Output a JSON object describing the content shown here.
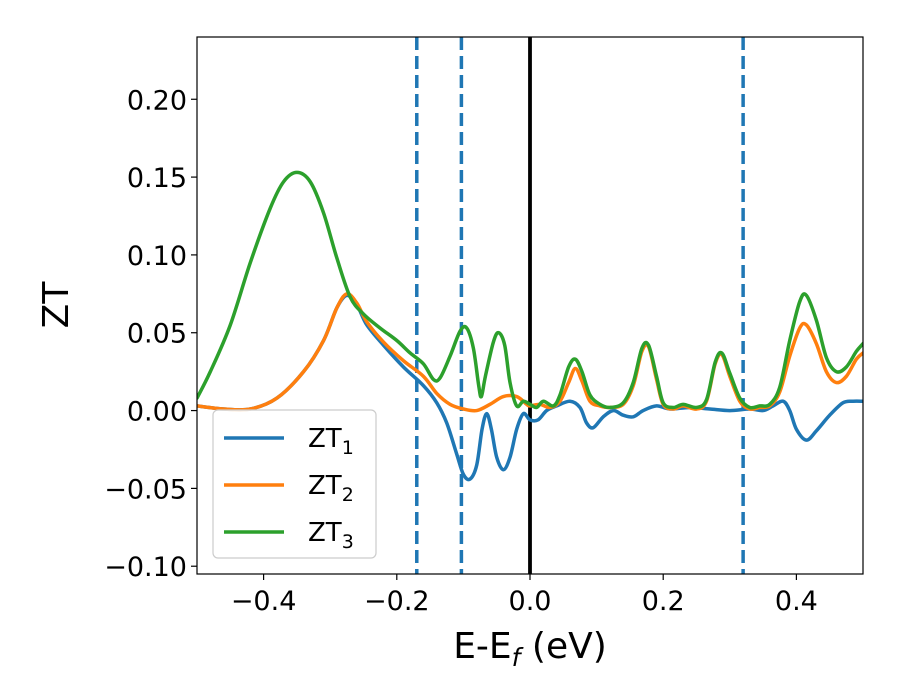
{
  "chart_data": {
    "type": "line",
    "title": "",
    "xlabel_base": "E-E",
    "xlabel_sub": "f",
    "xlabel_unit": " (eV)",
    "ylabel": "ZT",
    "xlim": [
      -0.5,
      0.5
    ],
    "ylim": [
      -0.105,
      0.24
    ],
    "x_ticks": [
      -0.4,
      -0.2,
      0.0,
      0.2,
      0.4
    ],
    "x_tick_labels": [
      "−0.4",
      "−0.2",
      "0.0",
      "0.2",
      "0.4"
    ],
    "y_ticks": [
      -0.1,
      -0.05,
      0.0,
      0.05,
      0.1,
      0.15,
      0.2
    ],
    "y_tick_labels": [
      "−0.10",
      "−0.05",
      "0.00",
      "0.05",
      "0.10",
      "0.15",
      "0.20"
    ],
    "grid": false,
    "legend_position": "lower-left",
    "vlines": [
      {
        "x": 0.0,
        "style": "solid",
        "color": "#000000"
      },
      {
        "x": -0.17,
        "style": "dashed",
        "color": "#1f77b4"
      },
      {
        "x": -0.103,
        "style": "dashed",
        "color": "#1f77b4"
      },
      {
        "x": 0.32,
        "style": "dashed",
        "color": "#1f77b4"
      }
    ],
    "series": [
      {
        "name": "ZT",
        "sub": "1",
        "color": "#1f77b4",
        "points": [
          [
            -0.5,
            0.003
          ],
          [
            -0.46,
            0.001
          ],
          [
            -0.42,
            0.001
          ],
          [
            -0.38,
            0.008
          ],
          [
            -0.34,
            0.025
          ],
          [
            -0.31,
            0.045
          ],
          [
            -0.29,
            0.066
          ],
          [
            -0.275,
            0.074
          ],
          [
            -0.26,
            0.068
          ],
          [
            -0.245,
            0.055
          ],
          [
            -0.22,
            0.042
          ],
          [
            -0.19,
            0.028
          ],
          [
            -0.16,
            0.016
          ],
          [
            -0.14,
            0.005
          ],
          [
            -0.125,
            -0.008
          ],
          [
            -0.11,
            -0.028
          ],
          [
            -0.1,
            -0.041
          ],
          [
            -0.09,
            -0.044
          ],
          [
            -0.08,
            -0.035
          ],
          [
            -0.072,
            -0.012
          ],
          [
            -0.065,
            -0.002
          ],
          [
            -0.058,
            -0.012
          ],
          [
            -0.05,
            -0.03
          ],
          [
            -0.04,
            -0.038
          ],
          [
            -0.03,
            -0.03
          ],
          [
            -0.02,
            -0.012
          ],
          [
            -0.01,
            -0.002
          ],
          [
            0.0,
            -0.006
          ],
          [
            0.012,
            -0.006
          ],
          [
            0.025,
            0.0
          ],
          [
            0.04,
            0.003
          ],
          [
            0.06,
            0.006
          ],
          [
            0.075,
            0.002
          ],
          [
            0.085,
            -0.008
          ],
          [
            0.095,
            -0.011
          ],
          [
            0.11,
            -0.004
          ],
          [
            0.125,
            0.0
          ],
          [
            0.14,
            -0.003
          ],
          [
            0.155,
            -0.004
          ],
          [
            0.17,
            0.0
          ],
          [
            0.19,
            0.003
          ],
          [
            0.21,
            0.001
          ],
          [
            0.24,
            0.002
          ],
          [
            0.27,
            0.001
          ],
          [
            0.3,
            0.0
          ],
          [
            0.33,
            0.001
          ],
          [
            0.35,
            0.0
          ],
          [
            0.365,
            0.003
          ],
          [
            0.38,
            0.006
          ],
          [
            0.39,
            0.0
          ],
          [
            0.4,
            -0.012
          ],
          [
            0.415,
            -0.019
          ],
          [
            0.43,
            -0.013
          ],
          [
            0.45,
            -0.003
          ],
          [
            0.47,
            0.005
          ],
          [
            0.485,
            0.006
          ],
          [
            0.5,
            0.006
          ]
        ]
      },
      {
        "name": "ZT",
        "sub": "2",
        "color": "#ff7f0e",
        "points": [
          [
            -0.5,
            0.003
          ],
          [
            -0.46,
            0.001
          ],
          [
            -0.42,
            0.001
          ],
          [
            -0.38,
            0.008
          ],
          [
            -0.34,
            0.025
          ],
          [
            -0.31,
            0.045
          ],
          [
            -0.29,
            0.066
          ],
          [
            -0.275,
            0.075
          ],
          [
            -0.26,
            0.069
          ],
          [
            -0.245,
            0.057
          ],
          [
            -0.22,
            0.044
          ],
          [
            -0.19,
            0.032
          ],
          [
            -0.16,
            0.022
          ],
          [
            -0.14,
            0.011
          ],
          [
            -0.12,
            0.004
          ],
          [
            -0.1,
            0.001
          ],
          [
            -0.08,
            0.0
          ],
          [
            -0.06,
            0.004
          ],
          [
            -0.04,
            0.009
          ],
          [
            -0.02,
            0.009
          ],
          [
            -0.005,
            0.004
          ],
          [
            0.0,
            0.003
          ],
          [
            0.015,
            0.004
          ],
          [
            0.03,
            0.002
          ],
          [
            0.045,
            0.006
          ],
          [
            0.058,
            0.018
          ],
          [
            0.068,
            0.027
          ],
          [
            0.078,
            0.019
          ],
          [
            0.09,
            0.006
          ],
          [
            0.105,
            0.003
          ],
          [
            0.12,
            0.002
          ],
          [
            0.14,
            0.004
          ],
          [
            0.155,
            0.016
          ],
          [
            0.168,
            0.038
          ],
          [
            0.178,
            0.041
          ],
          [
            0.19,
            0.02
          ],
          [
            0.2,
            0.004
          ],
          [
            0.215,
            0.001
          ],
          [
            0.23,
            0.003
          ],
          [
            0.25,
            0.001
          ],
          [
            0.265,
            0.006
          ],
          [
            0.278,
            0.03
          ],
          [
            0.288,
            0.036
          ],
          [
            0.3,
            0.022
          ],
          [
            0.315,
            0.006
          ],
          [
            0.33,
            0.001
          ],
          [
            0.345,
            0.002
          ],
          [
            0.36,
            0.003
          ],
          [
            0.375,
            0.012
          ],
          [
            0.39,
            0.035
          ],
          [
            0.405,
            0.053
          ],
          [
            0.415,
            0.055
          ],
          [
            0.43,
            0.043
          ],
          [
            0.445,
            0.025
          ],
          [
            0.46,
            0.018
          ],
          [
            0.475,
            0.022
          ],
          [
            0.49,
            0.033
          ],
          [
            0.5,
            0.037
          ]
        ]
      },
      {
        "name": "ZT",
        "sub": "3",
        "color": "#2ca02c",
        "points": [
          [
            -0.5,
            0.008
          ],
          [
            -0.48,
            0.025
          ],
          [
            -0.45,
            0.055
          ],
          [
            -0.42,
            0.095
          ],
          [
            -0.39,
            0.13
          ],
          [
            -0.37,
            0.147
          ],
          [
            -0.35,
            0.153
          ],
          [
            -0.33,
            0.147
          ],
          [
            -0.31,
            0.127
          ],
          [
            -0.29,
            0.098
          ],
          [
            -0.27,
            0.073
          ],
          [
            -0.25,
            0.062
          ],
          [
            -0.225,
            0.053
          ],
          [
            -0.2,
            0.045
          ],
          [
            -0.18,
            0.037
          ],
          [
            -0.16,
            0.03
          ],
          [
            -0.145,
            0.02
          ],
          [
            -0.135,
            0.021
          ],
          [
            -0.12,
            0.035
          ],
          [
            -0.105,
            0.051
          ],
          [
            -0.095,
            0.053
          ],
          [
            -0.085,
            0.04
          ],
          [
            -0.077,
            0.016
          ],
          [
            -0.073,
            0.009
          ],
          [
            -0.067,
            0.022
          ],
          [
            -0.055,
            0.044
          ],
          [
            -0.047,
            0.05
          ],
          [
            -0.038,
            0.042
          ],
          [
            -0.03,
            0.018
          ],
          [
            -0.02,
            0.003
          ],
          [
            -0.01,
            0.006
          ],
          [
            0.0,
            0.004
          ],
          [
            0.01,
            0.002
          ],
          [
            0.02,
            0.006
          ],
          [
            0.035,
            0.003
          ],
          [
            0.045,
            0.01
          ],
          [
            0.058,
            0.028
          ],
          [
            0.068,
            0.033
          ],
          [
            0.078,
            0.025
          ],
          [
            0.09,
            0.01
          ],
          [
            0.105,
            0.004
          ],
          [
            0.12,
            0.002
          ],
          [
            0.14,
            0.005
          ],
          [
            0.155,
            0.018
          ],
          [
            0.168,
            0.04
          ],
          [
            0.178,
            0.042
          ],
          [
            0.19,
            0.022
          ],
          [
            0.2,
            0.005
          ],
          [
            0.215,
            0.002
          ],
          [
            0.23,
            0.004
          ],
          [
            0.25,
            0.002
          ],
          [
            0.265,
            0.007
          ],
          [
            0.278,
            0.031
          ],
          [
            0.288,
            0.037
          ],
          [
            0.3,
            0.024
          ],
          [
            0.315,
            0.008
          ],
          [
            0.33,
            0.002
          ],
          [
            0.345,
            0.003
          ],
          [
            0.36,
            0.004
          ],
          [
            0.375,
            0.015
          ],
          [
            0.39,
            0.045
          ],
          [
            0.405,
            0.07
          ],
          [
            0.415,
            0.074
          ],
          [
            0.43,
            0.058
          ],
          [
            0.445,
            0.034
          ],
          [
            0.46,
            0.025
          ],
          [
            0.475,
            0.028
          ],
          [
            0.49,
            0.038
          ],
          [
            0.5,
            0.043
          ]
        ]
      }
    ]
  }
}
